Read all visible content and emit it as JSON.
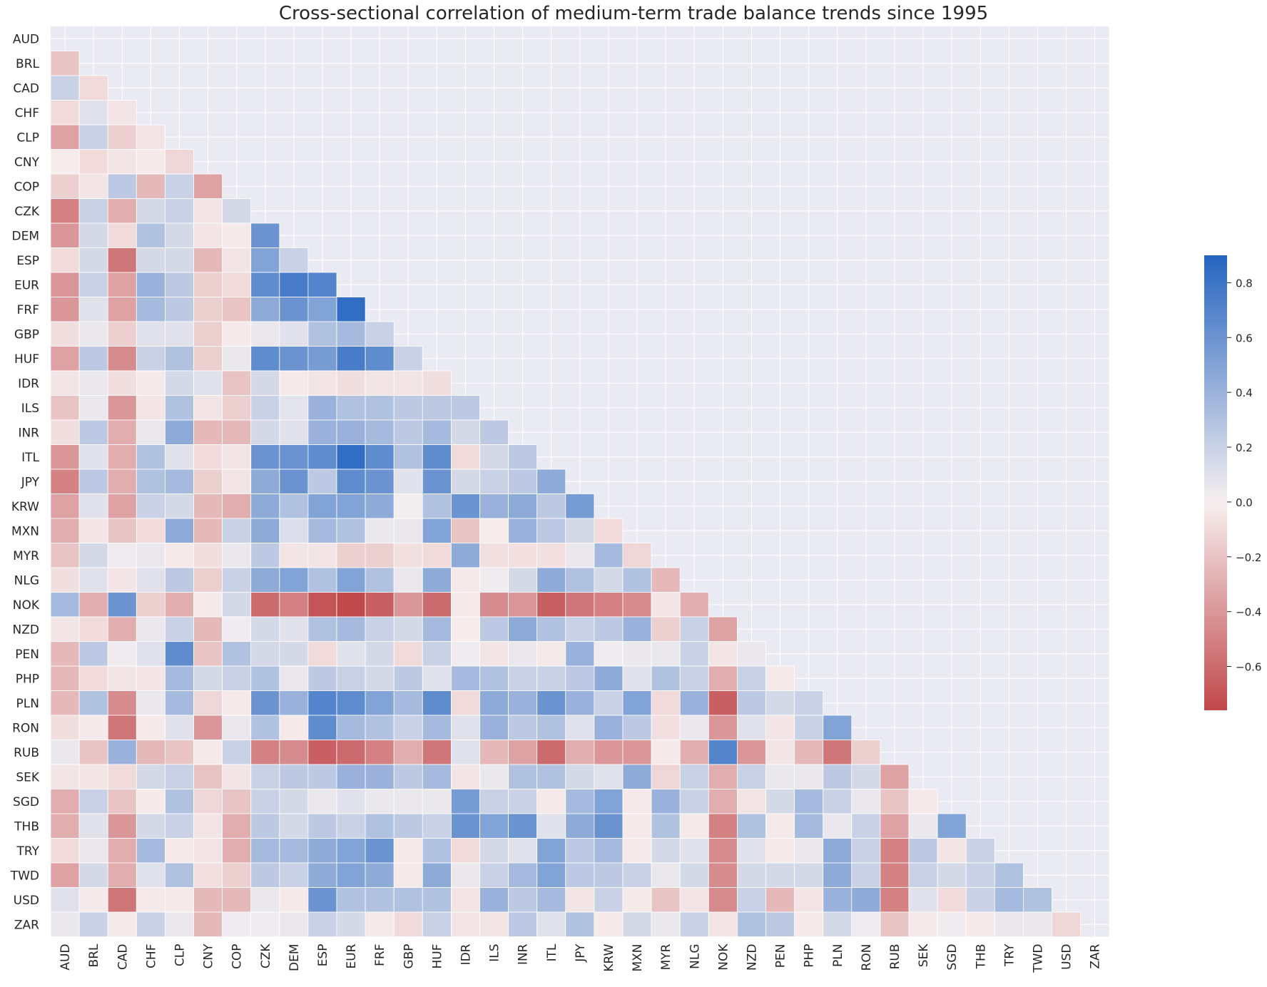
{
  "chart_data": {
    "type": "heatmap",
    "title": "Cross-sectional correlation of medium-term trade balance trends since 1995",
    "labels": [
      "AUD",
      "BRL",
      "CAD",
      "CHF",
      "CLP",
      "CNY",
      "COP",
      "CZK",
      "DEM",
      "ESP",
      "EUR",
      "FRF",
      "GBP",
      "HUF",
      "IDR",
      "ILS",
      "INR",
      "ITL",
      "JPY",
      "KRW",
      "MXN",
      "MYR",
      "NLG",
      "NOK",
      "NZD",
      "PEN",
      "PHP",
      "PLN",
      "RON",
      "RUB",
      "SEK",
      "SGD",
      "THB",
      "TRY",
      "TWD",
      "USD",
      "ZAR"
    ],
    "lower_triangle_values": [
      [],
      [
        -0.2
      ],
      [
        0.2,
        -0.1
      ],
      [
        -0.1,
        0.1,
        -0.05
      ],
      [
        -0.35,
        0.2,
        -0.15,
        -0.05
      ],
      [
        -0.02,
        -0.1,
        -0.05,
        -0.03,
        -0.12
      ],
      [
        -0.15,
        -0.05,
        0.25,
        -0.25,
        0.2,
        -0.35
      ],
      [
        -0.5,
        0.2,
        -0.3,
        0.15,
        0.2,
        -0.05,
        0.15
      ],
      [
        -0.4,
        0.15,
        -0.1,
        0.3,
        0.15,
        -0.05,
        -0.03,
        0.6
      ],
      [
        -0.1,
        0.15,
        -0.55,
        0.15,
        0.15,
        -0.25,
        -0.05,
        0.5,
        0.2
      ],
      [
        -0.4,
        0.2,
        -0.35,
        0.4,
        0.25,
        -0.15,
        -0.1,
        0.65,
        0.75,
        0.7
      ],
      [
        -0.4,
        0.1,
        -0.35,
        0.35,
        0.25,
        -0.15,
        -0.2,
        0.45,
        0.6,
        0.5,
        0.85
      ],
      [
        -0.08,
        0.05,
        -0.15,
        0.1,
        0.1,
        -0.15,
        -0.03,
        0.05,
        0.1,
        0.3,
        0.35,
        0.2
      ],
      [
        -0.35,
        0.25,
        -0.45,
        0.2,
        0.3,
        -0.15,
        0.05,
        0.65,
        0.6,
        0.55,
        0.75,
        0.65,
        0.2
      ],
      [
        -0.05,
        0.05,
        -0.08,
        -0.03,
        0.15,
        0.1,
        -0.2,
        0.15,
        -0.03,
        -0.05,
        -0.08,
        -0.05,
        -0.05,
        -0.08
      ],
      [
        -0.2,
        0.05,
        -0.4,
        -0.05,
        0.3,
        -0.05,
        -0.15,
        0.2,
        0.08,
        0.4,
        0.3,
        0.3,
        0.25,
        0.25,
        0.25
      ],
      [
        -0.08,
        0.25,
        -0.3,
        0.05,
        0.45,
        -0.25,
        -0.25,
        0.15,
        0.1,
        0.4,
        0.4,
        0.35,
        0.25,
        0.35,
        0.15,
        0.25
      ],
      [
        -0.4,
        0.1,
        -0.3,
        0.3,
        0.1,
        -0.1,
        -0.05,
        0.6,
        0.6,
        0.65,
        0.85,
        0.65,
        0.3,
        0.65,
        -0.1,
        0.15,
        0.25
      ],
      [
        -0.5,
        0.25,
        -0.3,
        0.3,
        0.35,
        -0.15,
        -0.05,
        0.45,
        0.6,
        0.25,
        0.65,
        0.6,
        0.1,
        0.6,
        0.15,
        0.2,
        0.25,
        0.45
      ],
      [
        -0.35,
        0.1,
        -0.35,
        0.2,
        0.15,
        -0.25,
        -0.3,
        0.45,
        0.3,
        0.5,
        0.5,
        0.45,
        0.02,
        0.3,
        0.6,
        0.4,
        0.45,
        0.25,
        0.55
      ],
      [
        -0.3,
        -0.05,
        -0.2,
        -0.1,
        0.45,
        -0.25,
        0.2,
        0.45,
        0.12,
        0.35,
        0.3,
        0.05,
        0.05,
        0.5,
        -0.2,
        -0.02,
        0.4,
        0.25,
        0.15,
        -0.1
      ],
      [
        -0.2,
        0.15,
        0.03,
        0.05,
        -0.03,
        -0.08,
        0.05,
        0.25,
        -0.05,
        -0.05,
        -0.15,
        -0.15,
        -0.07,
        -0.1,
        0.45,
        -0.07,
        -0.07,
        -0.07,
        0.05,
        0.35,
        -0.12
      ],
      [
        -0.08,
        0.1,
        -0.05,
        0.1,
        0.25,
        -0.15,
        0.2,
        0.45,
        0.5,
        0.3,
        0.5,
        0.3,
        0.05,
        0.45,
        -0.03,
        0.03,
        0.15,
        0.45,
        0.3,
        0.15,
        0.3,
        -0.25
      ],
      [
        0.35,
        -0.3,
        0.6,
        -0.15,
        -0.3,
        -0.03,
        0.15,
        -0.6,
        -0.5,
        -0.7,
        -0.75,
        -0.65,
        -0.4,
        -0.6,
        -0.03,
        -0.45,
        -0.4,
        -0.65,
        -0.55,
        -0.5,
        -0.45,
        -0.05,
        -0.3
      ],
      [
        -0.05,
        -0.1,
        -0.3,
        0.05,
        0.2,
        -0.25,
        0.03,
        0.15,
        0.1,
        0.3,
        0.35,
        0.2,
        0.15,
        0.35,
        -0.02,
        0.25,
        0.45,
        0.3,
        0.2,
        0.25,
        0.4,
        -0.15,
        0.2,
        -0.35
      ],
      [
        -0.25,
        0.25,
        0.03,
        0.1,
        0.65,
        -0.2,
        0.3,
        0.15,
        0.15,
        -0.1,
        0.1,
        0.15,
        -0.1,
        0.2,
        0.03,
        -0.05,
        0.05,
        -0.03,
        0.4,
        0.03,
        0.05,
        0.05,
        0.2,
        -0.05,
        0.05
      ],
      [
        -0.25,
        -0.1,
        -0.05,
        -0.05,
        0.35,
        0.15,
        0.2,
        0.3,
        0.05,
        0.25,
        0.2,
        0.15,
        0.25,
        0.1,
        0.35,
        0.3,
        0.2,
        0.2,
        0.25,
        0.45,
        0.1,
        0.3,
        0.2,
        -0.3,
        0.2,
        -0.03
      ],
      [
        -0.25,
        0.3,
        -0.45,
        0.05,
        0.35,
        -0.12,
        -0.03,
        0.6,
        0.4,
        0.7,
        0.65,
        0.5,
        0.35,
        0.65,
        -0.1,
        0.45,
        0.4,
        0.6,
        0.4,
        0.2,
        0.5,
        -0.1,
        0.4,
        -0.65,
        0.25,
        0.15,
        0.2
      ],
      [
        -0.08,
        -0.03,
        -0.55,
        -0.03,
        0.1,
        -0.4,
        0.05,
        0.3,
        -0.03,
        0.65,
        0.35,
        0.3,
        0.2,
        0.35,
        0.1,
        0.4,
        0.25,
        0.3,
        0.1,
        0.4,
        0.25,
        -0.07,
        0.05,
        -0.4,
        0.1,
        -0.05,
        0.2,
        0.5
      ],
      [
        0.05,
        -0.2,
        0.4,
        -0.25,
        -0.2,
        -0.03,
        0.2,
        -0.5,
        -0.45,
        -0.65,
        -0.6,
        -0.5,
        -0.3,
        -0.55,
        0.1,
        -0.25,
        -0.35,
        -0.6,
        -0.3,
        -0.4,
        -0.4,
        -0.03,
        -0.3,
        0.7,
        -0.4,
        -0.05,
        -0.25,
        -0.55,
        -0.15
      ],
      [
        -0.05,
        -0.05,
        -0.1,
        0.15,
        0.2,
        -0.2,
        -0.05,
        0.2,
        0.25,
        0.25,
        0.4,
        0.4,
        0.25,
        0.35,
        -0.05,
        0.05,
        0.3,
        0.3,
        0.15,
        0.1,
        0.45,
        -0.12,
        0.2,
        -0.3,
        0.2,
        0.05,
        0.05,
        0.25,
        0.15,
        -0.35
      ],
      [
        -0.3,
        0.2,
        -0.2,
        -0.03,
        0.3,
        -0.12,
        -0.2,
        0.2,
        0.15,
        0.05,
        0.1,
        0.05,
        0.05,
        0.05,
        0.55,
        0.2,
        0.2,
        -0.03,
        0.35,
        0.5,
        -0.03,
        0.4,
        0.2,
        -0.3,
        -0.05,
        0.15,
        0.35,
        0.2,
        0.05,
        -0.2,
        -0.03
      ],
      [
        -0.3,
        0.1,
        -0.4,
        0.15,
        0.2,
        -0.05,
        -0.3,
        0.25,
        0.15,
        0.25,
        0.2,
        0.3,
        0.25,
        0.2,
        0.6,
        0.5,
        0.6,
        0.1,
        0.45,
        0.6,
        -0.03,
        0.3,
        -0.03,
        -0.5,
        0.3,
        -0.03,
        0.35,
        0.05,
        0.2,
        -0.35,
        0.05,
        0.5
      ],
      [
        -0.1,
        0.05,
        -0.3,
        0.35,
        -0.03,
        -0.05,
        -0.3,
        0.35,
        0.35,
        0.45,
        0.5,
        0.6,
        -0.03,
        0.3,
        -0.1,
        0.15,
        0.1,
        0.5,
        0.25,
        0.35,
        -0.03,
        0.15,
        0.1,
        -0.45,
        0.1,
        -0.03,
        0.05,
        0.45,
        0.2,
        -0.5,
        0.25,
        -0.05,
        0.2
      ],
      [
        -0.35,
        0.15,
        -0.3,
        0.1,
        0.3,
        -0.07,
        -0.15,
        0.25,
        0.2,
        0.45,
        0.5,
        0.45,
        -0.03,
        0.45,
        0.05,
        0.2,
        0.35,
        0.5,
        0.25,
        0.25,
        0.2,
        0.05,
        0.15,
        -0.45,
        0.15,
        0.15,
        0.15,
        0.45,
        0.2,
        -0.5,
        0.2,
        0.15,
        0.2,
        0.3
      ],
      [
        0.1,
        -0.03,
        -0.55,
        -0.03,
        -0.03,
        -0.25,
        -0.25,
        0.05,
        -0.03,
        0.6,
        0.3,
        0.3,
        0.3,
        0.3,
        -0.05,
        0.4,
        0.25,
        0.35,
        -0.05,
        0.2,
        -0.03,
        -0.2,
        -0.05,
        -0.45,
        0.2,
        -0.25,
        -0.05,
        0.4,
        0.45,
        -0.5,
        0.1,
        -0.1,
        0.2,
        0.35,
        0.3
      ],
      [
        0.05,
        0.2,
        -0.03,
        0.2,
        0.05,
        -0.25,
        0.03,
        0.03,
        0.05,
        0.2,
        0.15,
        -0.03,
        -0.1,
        0.2,
        -0.05,
        -0.05,
        0.25,
        0.1,
        0.3,
        -0.03,
        0.15,
        0.05,
        0.2,
        -0.05,
        0.3,
        0.25,
        -0.03,
        0.15,
        0.03,
        -0.2,
        -0.03,
        0.03,
        -0.03,
        0.05,
        0.05,
        -0.12
      ]
    ],
    "colorbar": {
      "range": [
        -0.76,
        0.9
      ],
      "ticks": [
        "0.8",
        "0.6",
        "0.4",
        "0.2",
        "0.0",
        "−0.2",
        "−0.4",
        "−0.6"
      ],
      "tick_values": [
        0.8,
        0.6,
        0.4,
        0.2,
        0.0,
        -0.2,
        -0.4,
        -0.6
      ],
      "low_color": "#c0474a",
      "mid_color": "#f7f0f0",
      "high_color": "#2565c0"
    },
    "background_color": "#eaeaf2",
    "grid": true
  }
}
